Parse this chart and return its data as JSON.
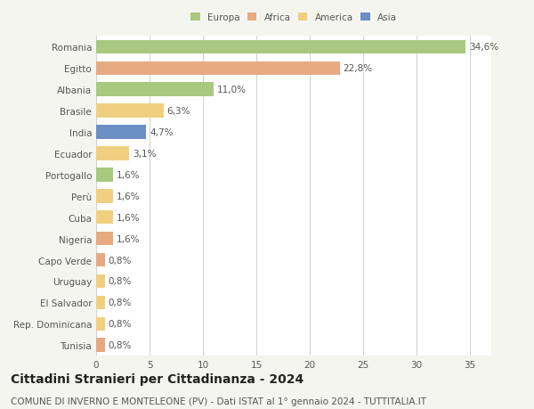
{
  "countries": [
    "Romania",
    "Egitto",
    "Albania",
    "Brasile",
    "India",
    "Ecuador",
    "Portogallo",
    "Perù",
    "Cuba",
    "Nigeria",
    "Capo Verde",
    "Uruguay",
    "El Salvador",
    "Rep. Dominicana",
    "Tunisia"
  ],
  "values": [
    34.6,
    22.8,
    11.0,
    6.3,
    4.7,
    3.1,
    1.6,
    1.6,
    1.6,
    1.6,
    0.8,
    0.8,
    0.8,
    0.8,
    0.8
  ],
  "labels": [
    "34,6%",
    "22,8%",
    "11,0%",
    "6,3%",
    "4,7%",
    "3,1%",
    "1,6%",
    "1,6%",
    "1,6%",
    "1,6%",
    "0,8%",
    "0,8%",
    "0,8%",
    "0,8%",
    "0,8%"
  ],
  "colors": [
    "#a8c97f",
    "#e8aa80",
    "#a8c97f",
    "#f0d080",
    "#6b8fc4",
    "#f0d080",
    "#a8c97f",
    "#f0d080",
    "#f0d080",
    "#e8aa80",
    "#e8aa80",
    "#f0d080",
    "#f0d080",
    "#f0d080",
    "#e8aa80"
  ],
  "legend_labels": [
    "Europa",
    "Africa",
    "America",
    "Asia"
  ],
  "legend_colors": [
    "#a8c97f",
    "#e8aa80",
    "#f0d080",
    "#6b8fc4"
  ],
  "title": "Cittadini Stranieri per Cittadinanza - 2024",
  "subtitle": "COMUNE DI INVERNO E MONTELEONE (PV) - Dati ISTAT al 1° gennaio 2024 - TUTTITALIA.IT",
  "xlim": [
    0,
    37
  ],
  "bg_color": "#f5f5f0",
  "plot_bg_color": "#ffffff",
  "grid_color": "#d0d0d0",
  "bar_height": 0.65,
  "label_fontsize": 7.5,
  "title_fontsize": 10,
  "subtitle_fontsize": 7.5,
  "tick_fontsize": 7.5,
  "ytick_fontsize": 7.5
}
